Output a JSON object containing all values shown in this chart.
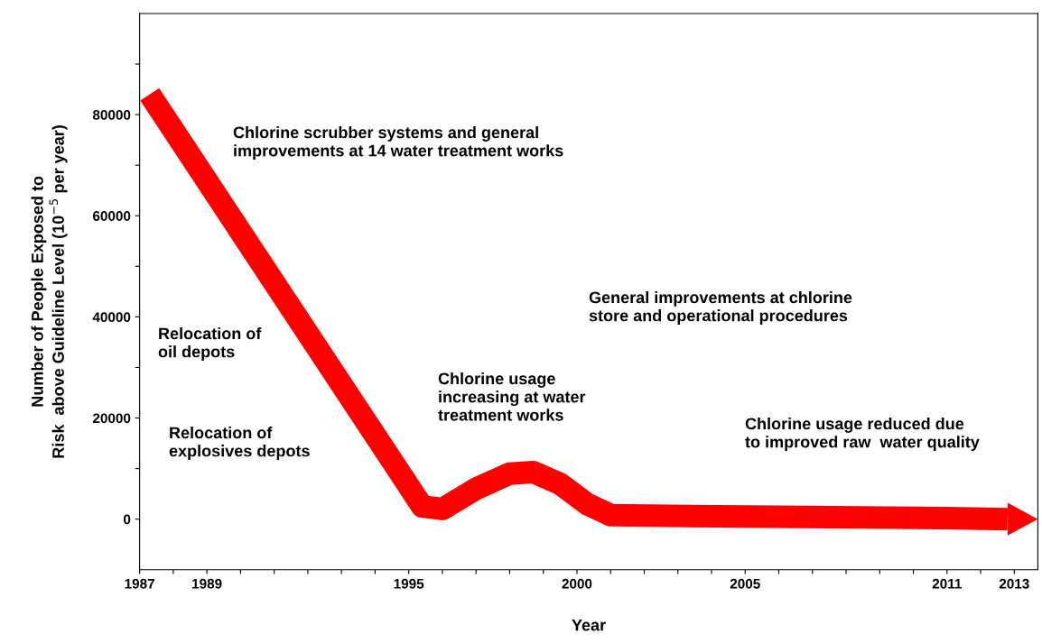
{
  "chart_data": {
    "type": "line",
    "xlabel": "Year",
    "ylabel": "Number of People Exposed to\nRisk  above Guideline Level (10$^{−5}$ per year)",
    "x": [
      1987.3,
      1995.4,
      1996,
      1997,
      1998,
      1998.7,
      1999.5,
      2000.3,
      2001,
      2005,
      2011,
      2012.8
    ],
    "series": [
      {
        "color": "#ff0000",
        "values": [
          84000,
          2500,
          2000,
          6000,
          9000,
          9300,
          7000,
          3000,
          800,
          500,
          200,
          0
        ]
      }
    ],
    "xlim": [
      1987,
      2013.7
    ],
    "ylim": [
      -10000,
      100000
    ],
    "xticks": [
      1987,
      {
        "value": 1988,
        "label": null
      },
      1989,
      {
        "value": 1990,
        "label": null
      },
      {
        "value": 1991,
        "label": null
      },
      {
        "value": 1992,
        "label": null
      },
      {
        "value": 1993,
        "label": null
      },
      {
        "value": 1994,
        "label": null
      },
      1995,
      {
        "value": 1996,
        "label": null
      },
      {
        "value": 1997,
        "label": null
      },
      {
        "value": 1998,
        "label": null
      },
      {
        "value": 1999,
        "label": null
      },
      2000,
      {
        "value": 2001,
        "label": null
      },
      {
        "value": 2002,
        "label": null
      },
      {
        "value": 2003,
        "label": null
      },
      {
        "value": 2004,
        "label": null
      },
      2005,
      {
        "value": 2006,
        "label": null
      },
      {
        "value": 2007,
        "label": null
      },
      {
        "value": 2008,
        "label": null
      },
      {
        "value": 2009,
        "label": null
      },
      {
        "value": 2010,
        "label": null
      },
      2011,
      {
        "value": 2012,
        "label": null
      },
      2013
    ],
    "yticks": [
      0,
      {
        "value": 10000,
        "label": null
      },
      20000,
      {
        "value": 30000,
        "label": null
      },
      40000,
      {
        "value": 50000,
        "label": null
      },
      60000,
      {
        "value": 70000,
        "label": null
      },
      80000,
      {
        "value": 90000,
        "label": null
      }
    ],
    "annotations": [
      "Chlorine scrubber systems and general\nimprovements at 14 water treatment works",
      "General improvements at chlorine\nstore and operational procedures",
      "Relocation of\noil depots",
      "Chlorine usage\nincreasing at water\ntreatment works",
      "Relocation of\nexplosives depots",
      "Chlorine usage reduced due\nto improved raw  water quality"
    ],
    "grid": false,
    "legend": false,
    "marker": "none",
    "line_style": "solid"
  }
}
